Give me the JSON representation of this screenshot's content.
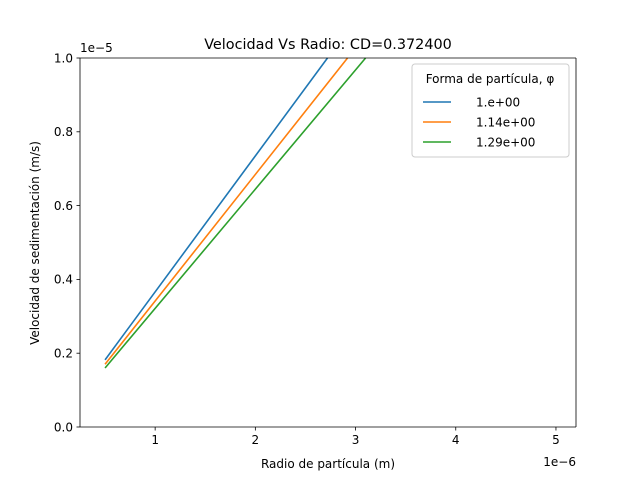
{
  "chart_data": {
    "type": "line",
    "title": "Velocidad Vs Radio: CD=0.372400",
    "xlabel": "Radio de partícula (m)",
    "ylabel": "Velocidad de sedimentación (m/s)",
    "x_offset_label": "1e−6",
    "y_offset_label": "1e−5",
    "xlim": [
      0.25,
      5.2
    ],
    "ylim": [
      0.0,
      1.0
    ],
    "x_ticks": [
      1,
      2,
      3,
      4,
      5
    ],
    "x_tick_labels": [
      "1",
      "2",
      "3",
      "4",
      "5"
    ],
    "y_ticks": [
      0.0,
      0.2,
      0.4,
      0.6,
      0.8,
      1.0
    ],
    "y_tick_labels": [
      "0.0",
      "0.2",
      "0.4",
      "0.6",
      "0.8",
      "1.0"
    ],
    "grid": false,
    "legend": {
      "title": "Forma de partícula, φ",
      "placement": "top-right"
    },
    "series": [
      {
        "name": "1.e+00",
        "color": "#1f77b4",
        "x": [
          0.5,
          2.72
        ],
        "y": [
          0.182,
          1.0
        ]
      },
      {
        "name": "1.14e+00",
        "color": "#ff7f0e",
        "x": [
          0.5,
          2.92
        ],
        "y": [
          0.17,
          1.0
        ]
      },
      {
        "name": "1.29e+00",
        "color": "#2ca02c",
        "x": [
          0.5,
          3.1
        ],
        "y": [
          0.16,
          1.0
        ]
      }
    ]
  }
}
